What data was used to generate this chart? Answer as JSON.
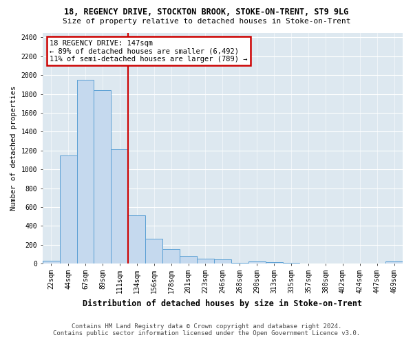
{
  "title1": "18, REGENCY DRIVE, STOCKTON BROOK, STOKE-ON-TRENT, ST9 9LG",
  "title2": "Size of property relative to detached houses in Stoke-on-Trent",
  "xlabel": "Distribution of detached houses by size in Stoke-on-Trent",
  "ylabel": "Number of detached properties",
  "footer1": "Contains HM Land Registry data © Crown copyright and database right 2024.",
  "footer2": "Contains public sector information licensed under the Open Government Licence v3.0.",
  "bin_labels": [
    "22sqm",
    "44sqm",
    "67sqm",
    "89sqm",
    "111sqm",
    "134sqm",
    "156sqm",
    "178sqm",
    "201sqm",
    "223sqm",
    "246sqm",
    "268sqm",
    "290sqm",
    "313sqm",
    "335sqm",
    "357sqm",
    "380sqm",
    "402sqm",
    "424sqm",
    "447sqm",
    "469sqm"
  ],
  "bar_values": [
    30,
    1150,
    1950,
    1840,
    1210,
    510,
    265,
    155,
    80,
    50,
    45,
    5,
    25,
    15,
    5,
    0,
    0,
    0,
    0,
    0,
    20
  ],
  "bar_color": "#c5d9ee",
  "bar_edge_color": "#5a9fd4",
  "annotation_line1": "18 REGENCY DRIVE: 147sqm",
  "annotation_line2": "← 89% of detached houses are smaller (6,492)",
  "annotation_line3": "11% of semi-detached houses are larger (789) →",
  "annotation_box_color": "#ffffff",
  "annotation_box_edge": "#cc0000",
  "vline_color": "#cc0000",
  "vline_x": 4.5,
  "ylim_max": 2450,
  "yticks": [
    0,
    200,
    400,
    600,
    800,
    1000,
    1200,
    1400,
    1600,
    1800,
    2000,
    2200,
    2400
  ],
  "bg_color": "#ffffff",
  "plot_bg_color": "#dde8f0",
  "grid_color": "#ffffff",
  "title1_fontsize": 8.5,
  "title2_fontsize": 8.0,
  "tick_fontsize": 7.0,
  "ylabel_fontsize": 7.5,
  "xlabel_fontsize": 8.5,
  "footer_fontsize": 6.5,
  "annot_fontsize": 7.5
}
